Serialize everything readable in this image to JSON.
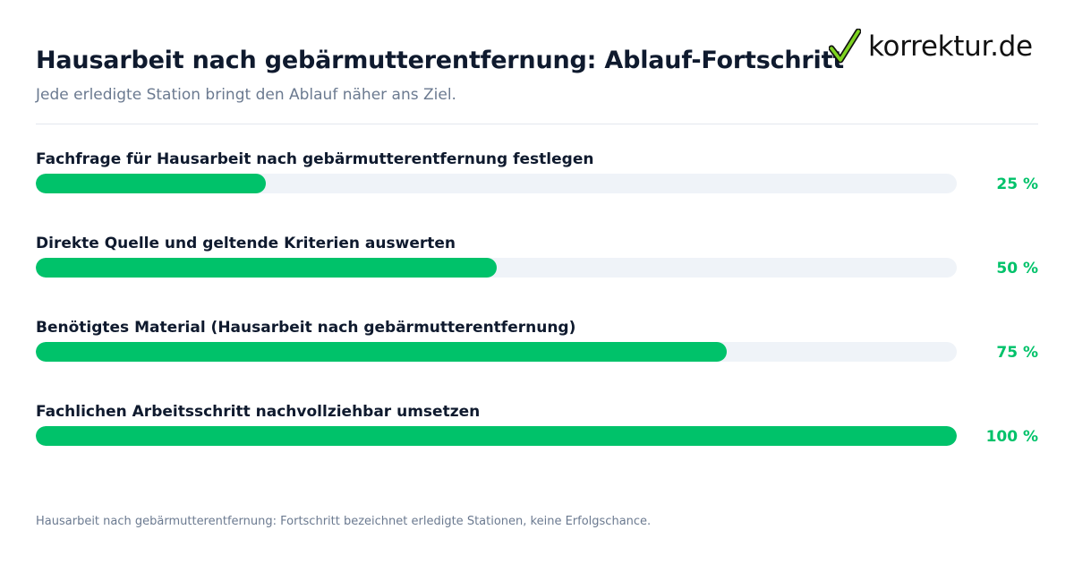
{
  "header": {
    "title": "Hausarbeit nach gebärmutterentfernung: Ablauf-Fortschritt",
    "subtitle": "Jede erledigte Station bringt den Ablauf näher ans Ziel."
  },
  "brand": {
    "logo_text": "korrektur.de",
    "logo_icon": "checkmark-icon",
    "check_color": "#7ed321"
  },
  "chart_data": {
    "type": "bar",
    "orientation": "horizontal",
    "title": "Hausarbeit nach gebärmutterentfernung: Ablauf-Fortschritt",
    "subtitle": "Jede erledigte Station bringt den Ablauf näher ans Ziel.",
    "categories": [
      "Fachfrage für Hausarbeit nach gebärmutterentfernung festlegen",
      "Direkte Quelle und geltende Kriterien auswerten",
      "Benötigtes Material (Hausarbeit nach gebärmutterentfernung)",
      "Fachlichen Arbeitsschritt nachvollziehbar umsetzen"
    ],
    "values": [
      25,
      50,
      75,
      100
    ],
    "value_labels": [
      "25 %",
      "50 %",
      "75 %",
      "100 %"
    ],
    "xlim": [
      0,
      100
    ],
    "unit": "%",
    "grid": false,
    "legend": "none",
    "colors": {
      "fill": "#00c26a",
      "track": "#eff3f8"
    }
  },
  "footnote": "Hausarbeit nach gebärmutterentfernung: Fortschritt bezeichnet erledigte Stationen, keine Erfolgschance."
}
